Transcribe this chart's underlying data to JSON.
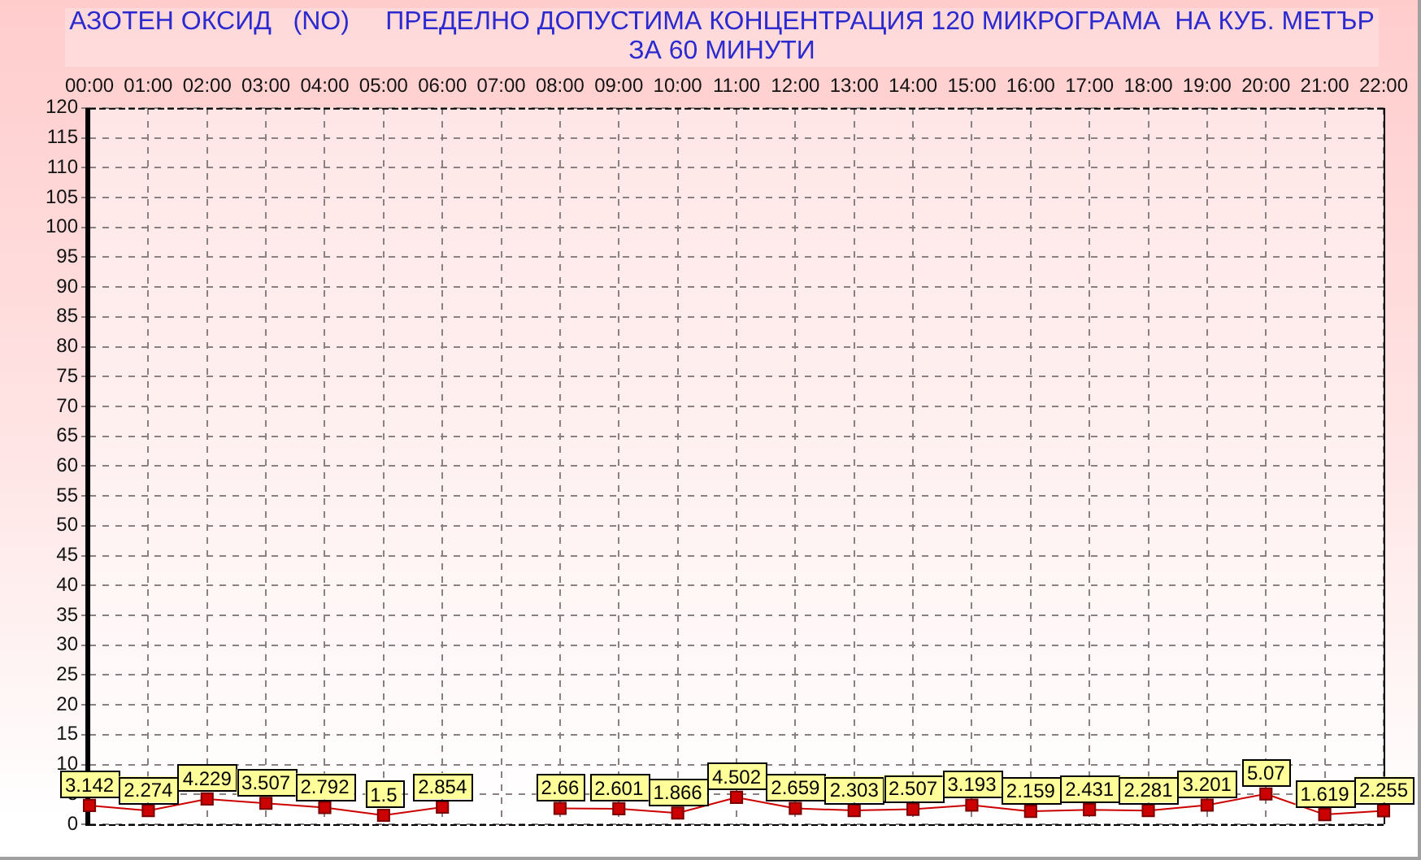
{
  "chart_data": {
    "type": "line",
    "title": "АЗОТЕН ОКСИД   (NO)     ПРЕДЕЛНО ДОПУСТИМА КОНЦЕНТРАЦИЯ 120 МИКРОГРАМА  НА КУБ. МЕТЪР ЗА 60 МИНУТИ",
    "categories": [
      "00:00",
      "01:00",
      "02:00",
      "03:00",
      "04:00",
      "05:00",
      "06:00",
      "07:00",
      "08:00",
      "09:00",
      "10:00",
      "11:00",
      "12:00",
      "13:00",
      "14:00",
      "15:00",
      "16:00",
      "17:00",
      "18:00",
      "19:00",
      "20:00",
      "21:00",
      "22:00"
    ],
    "values": [
      3.142,
      2.274,
      4.229,
      3.507,
      2.792,
      1.5,
      2.854,
      null,
      2.66,
      2.601,
      1.866,
      4.502,
      2.659,
      2.303,
      2.507,
      3.193,
      2.159,
      2.431,
      2.281,
      3.201,
      5.07,
      1.619,
      2.255
    ],
    "color": "#cc0000",
    "ylim": [
      0,
      120
    ],
    "yticks": [
      0,
      5,
      10,
      15,
      20,
      25,
      30,
      35,
      40,
      45,
      50,
      55,
      60,
      65,
      70,
      75,
      80,
      85,
      90,
      95,
      100,
      105,
      110,
      115,
      120
    ],
    "grid": true,
    "marker": "square",
    "line_style": "solid",
    "data_labels": true
  }
}
